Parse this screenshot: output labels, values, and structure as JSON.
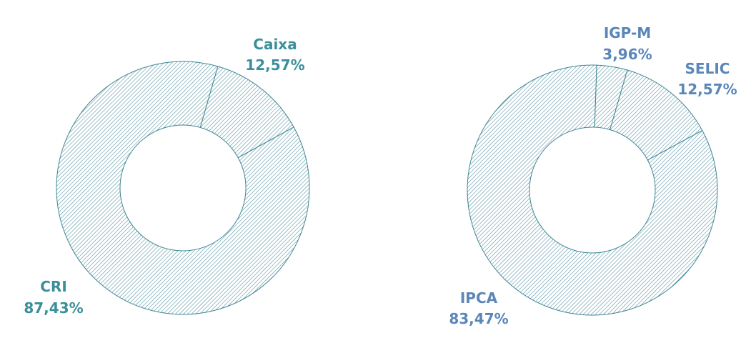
{
  "colors": {
    "left_chart": "#3a8f9a",
    "right_chart": "#5a86b8",
    "hatch_left": "#4a8c99",
    "hatch_right": "#4f8a9c"
  },
  "chart_data": [
    {
      "type": "pie",
      "style": "donut",
      "title": "",
      "slices": [
        {
          "label": "Caixa",
          "value": 12.57,
          "value_text": "12,57%"
        },
        {
          "label": "CRI",
          "value": 87.43,
          "value_text": "87,43%"
        }
      ]
    },
    {
      "type": "pie",
      "style": "donut",
      "title": "",
      "slices": [
        {
          "label": "IGP-M",
          "value": 3.96,
          "value_text": "3,96%"
        },
        {
          "label": "SELIC",
          "value": 12.57,
          "value_text": "12,57%"
        },
        {
          "label": "IPCA",
          "value": 83.47,
          "value_text": "83,47%"
        }
      ]
    }
  ]
}
